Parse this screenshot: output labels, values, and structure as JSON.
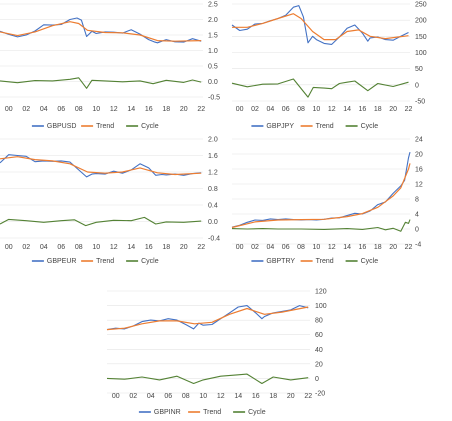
{
  "colors": {
    "series": "#4472C4",
    "trend": "#ED7D31",
    "cycle": "#548235",
    "grid": "#e4e4e4"
  },
  "x_ticks": [
    "00",
    "02",
    "04",
    "06",
    "08",
    "10",
    "12",
    "14",
    "16",
    "18",
    "20",
    "22"
  ],
  "chart_data": [
    {
      "type": "line",
      "x_start": 1999,
      "x_end": 2022.2,
      "ylim": [
        -0.5,
        2.5
      ],
      "yticks": [
        "2.5",
        "2.0",
        "1.5",
        "1.0",
        "0.5",
        "0.0",
        "-0.5"
      ],
      "legend": [
        "GBPUSD",
        "Trend",
        "Cycle"
      ],
      "legend_position": "bottom",
      "series_points": [
        [
          1999,
          1.62
        ],
        [
          2000,
          1.52
        ],
        [
          2001,
          1.44
        ],
        [
          2002,
          1.5
        ],
        [
          2003,
          1.63
        ],
        [
          2004,
          1.83
        ],
        [
          2005,
          1.82
        ],
        [
          2006,
          1.84
        ],
        [
          2007,
          2.0
        ],
        [
          2007.8,
          2.05
        ],
        [
          2008.3,
          1.98
        ],
        [
          2008.9,
          1.45
        ],
        [
          2009.5,
          1.62
        ],
        [
          2010,
          1.55
        ],
        [
          2011,
          1.6
        ],
        [
          2012,
          1.59
        ],
        [
          2013,
          1.56
        ],
        [
          2014,
          1.67
        ],
        [
          2015,
          1.53
        ],
        [
          2016,
          1.35
        ],
        [
          2016.6,
          1.28
        ],
        [
          2017,
          1.25
        ],
        [
          2018,
          1.35
        ],
        [
          2019,
          1.28
        ],
        [
          2020,
          1.27
        ],
        [
          2021,
          1.38
        ],
        [
          2022,
          1.3
        ]
      ],
      "trend_points": [
        [
          1999,
          1.6
        ],
        [
          2001,
          1.48
        ],
        [
          2003,
          1.6
        ],
        [
          2005,
          1.8
        ],
        [
          2007,
          1.93
        ],
        [
          2008,
          1.87
        ],
        [
          2009,
          1.65
        ],
        [
          2011,
          1.58
        ],
        [
          2013,
          1.57
        ],
        [
          2015,
          1.5
        ],
        [
          2017,
          1.32
        ],
        [
          2019,
          1.3
        ],
        [
          2022,
          1.32
        ]
      ],
      "cycle_points": [
        [
          1999,
          0.02
        ],
        [
          2001,
          -0.04
        ],
        [
          2003,
          0.03
        ],
        [
          2005,
          0.02
        ],
        [
          2007,
          0.07
        ],
        [
          2008,
          0.12
        ],
        [
          2008.9,
          -0.22
        ],
        [
          2009.5,
          0.04
        ],
        [
          2011,
          0.02
        ],
        [
          2013,
          -0.01
        ],
        [
          2015,
          0.02
        ],
        [
          2016.5,
          -0.07
        ],
        [
          2018,
          0.04
        ],
        [
          2020,
          -0.03
        ],
        [
          2021,
          0.05
        ],
        [
          2022,
          -0.02
        ]
      ]
    },
    {
      "type": "line",
      "x_start": 1999,
      "x_end": 2022.2,
      "ylim": [
        -50,
        250
      ],
      "yticks": [
        "250",
        "200",
        "150",
        "100",
        "50",
        "0",
        "-50"
      ],
      "legend": [
        "GBPJPY",
        "Trend",
        "Cycle"
      ],
      "legend_position": "bottom",
      "series_points": [
        [
          1999,
          185
        ],
        [
          2000,
          168
        ],
        [
          2001,
          172
        ],
        [
          2002,
          188
        ],
        [
          2003,
          190
        ],
        [
          2004,
          198
        ],
        [
          2005,
          205
        ],
        [
          2006,
          215
        ],
        [
          2007,
          240
        ],
        [
          2007.7,
          245
        ],
        [
          2008.3,
          210
        ],
        [
          2008.9,
          130
        ],
        [
          2009.5,
          150
        ],
        [
          2010,
          140
        ],
        [
          2011,
          128
        ],
        [
          2012,
          125
        ],
        [
          2013,
          148
        ],
        [
          2014,
          175
        ],
        [
          2015,
          185
        ],
        [
          2016,
          160
        ],
        [
          2016.7,
          135
        ],
        [
          2017,
          145
        ],
        [
          2018,
          148
        ],
        [
          2019,
          140
        ],
        [
          2020,
          138
        ],
        [
          2021,
          150
        ],
        [
          2022,
          162
        ]
      ],
      "trend_points": [
        [
          1999,
          178
        ],
        [
          2001,
          178
        ],
        [
          2003,
          190
        ],
        [
          2005,
          205
        ],
        [
          2007,
          220
        ],
        [
          2008,
          205
        ],
        [
          2009.5,
          165
        ],
        [
          2011,
          140
        ],
        [
          2012.5,
          140
        ],
        [
          2014,
          165
        ],
        [
          2015.5,
          170
        ],
        [
          2017,
          150
        ],
        [
          2019,
          143
        ],
        [
          2022,
          152
        ]
      ],
      "cycle_points": [
        [
          1999,
          5
        ],
        [
          2001,
          -6
        ],
        [
          2003,
          2
        ],
        [
          2005,
          3
        ],
        [
          2007,
          18
        ],
        [
          2008.9,
          -38
        ],
        [
          2009.6,
          -8
        ],
        [
          2011,
          -10
        ],
        [
          2012,
          -12
        ],
        [
          2013,
          4
        ],
        [
          2014,
          8
        ],
        [
          2015,
          12
        ],
        [
          2016.7,
          -18
        ],
        [
          2018,
          4
        ],
        [
          2020,
          -5
        ],
        [
          2022,
          8
        ]
      ]
    },
    {
      "type": "line",
      "x_start": 1999,
      "x_end": 2022.2,
      "ylim": [
        -0.4,
        2.0
      ],
      "yticks": [
        "2.0",
        "1.6",
        "1.2",
        "0.8",
        "0.4",
        "0.0",
        "-0.4"
      ],
      "legend": [
        "GBPEUR",
        "Trend",
        "Cycle"
      ],
      "legend_position": "bottom",
      "series_points": [
        [
          1999,
          1.42
        ],
        [
          2000,
          1.62
        ],
        [
          2001,
          1.6
        ],
        [
          2002,
          1.58
        ],
        [
          2003,
          1.45
        ],
        [
          2004,
          1.47
        ],
        [
          2005,
          1.46
        ],
        [
          2006,
          1.47
        ],
        [
          2007,
          1.44
        ],
        [
          2008,
          1.25
        ],
        [
          2008.9,
          1.08
        ],
        [
          2009.5,
          1.15
        ],
        [
          2010,
          1.16
        ],
        [
          2011,
          1.15
        ],
        [
          2012,
          1.22
        ],
        [
          2013,
          1.17
        ],
        [
          2014,
          1.25
        ],
        [
          2015,
          1.4
        ],
        [
          2016,
          1.3
        ],
        [
          2016.8,
          1.12
        ],
        [
          2017.5,
          1.14
        ],
        [
          2018,
          1.13
        ],
        [
          2019,
          1.15
        ],
        [
          2020,
          1.12
        ],
        [
          2021,
          1.16
        ],
        [
          2022,
          1.18
        ]
      ],
      "trend_points": [
        [
          1999,
          1.52
        ],
        [
          2001,
          1.57
        ],
        [
          2003,
          1.5
        ],
        [
          2005,
          1.47
        ],
        [
          2007,
          1.4
        ],
        [
          2009,
          1.2
        ],
        [
          2011,
          1.17
        ],
        [
          2013,
          1.2
        ],
        [
          2015,
          1.3
        ],
        [
          2017,
          1.18
        ],
        [
          2019,
          1.14
        ],
        [
          2022,
          1.17
        ]
      ],
      "cycle_points": [
        [
          1999,
          -0.06
        ],
        [
          2000,
          0.05
        ],
        [
          2002,
          0.02
        ],
        [
          2004,
          -0.02
        ],
        [
          2006,
          0.02
        ],
        [
          2007.5,
          0.04
        ],
        [
          2008.8,
          -0.1
        ],
        [
          2010,
          -0.02
        ],
        [
          2012,
          0.03
        ],
        [
          2014,
          0.02
        ],
        [
          2015.5,
          0.1
        ],
        [
          2016.8,
          -0.06
        ],
        [
          2018,
          -0.01
        ],
        [
          2020,
          -0.02
        ],
        [
          2022,
          0.01
        ]
      ]
    },
    {
      "type": "line",
      "x_start": 1999,
      "x_end": 2022.2,
      "ylim": [
        -4,
        24
      ],
      "yticks": [
        "24",
        "20",
        "16",
        "12",
        "8",
        "4",
        "0",
        "-4"
      ],
      "legend": [
        "GBPTRY",
        "Trend",
        "Cycle"
      ],
      "legend_position": "bottom",
      "series_points": [
        [
          1999,
          0.5
        ],
        [
          2000,
          1.0
        ],
        [
          2001,
          1.8
        ],
        [
          2002,
          2.4
        ],
        [
          2003,
          2.3
        ],
        [
          2004,
          2.7
        ],
        [
          2005,
          2.5
        ],
        [
          2006,
          2.7
        ],
        [
          2007,
          2.5
        ],
        [
          2008,
          2.4
        ],
        [
          2009,
          2.5
        ],
        [
          2010,
          2.4
        ],
        [
          2011,
          2.6
        ],
        [
          2012,
          2.9
        ],
        [
          2013,
          3.0
        ],
        [
          2014,
          3.6
        ],
        [
          2015,
          4.2
        ],
        [
          2016,
          4.0
        ],
        [
          2017,
          4.8
        ],
        [
          2018,
          6.5
        ],
        [
          2019,
          7.2
        ],
        [
          2020,
          9.5
        ],
        [
          2021,
          11.5
        ],
        [
          2021.5,
          13
        ],
        [
          2022,
          19
        ],
        [
          2022.2,
          20.5
        ]
      ],
      "trend_points": [
        [
          1999,
          0.4
        ],
        [
          2002,
          1.9
        ],
        [
          2005,
          2.4
        ],
        [
          2008,
          2.5
        ],
        [
          2011,
          2.6
        ],
        [
          2014,
          3.3
        ],
        [
          2016,
          4.1
        ],
        [
          2018,
          5.8
        ],
        [
          2020,
          8.8
        ],
        [
          2021,
          11.0
        ],
        [
          2022,
          16.0
        ],
        [
          2022.2,
          17.5
        ]
      ],
      "cycle_points": [
        [
          1999,
          0.1
        ],
        [
          2001,
          0.0
        ],
        [
          2003,
          0.1
        ],
        [
          2005,
          0.0
        ],
        [
          2008,
          0.0
        ],
        [
          2011,
          -0.1
        ],
        [
          2014,
          0.1
        ],
        [
          2016,
          -0.1
        ],
        [
          2018,
          0.4
        ],
        [
          2019,
          -0.2
        ],
        [
          2020,
          0.2
        ],
        [
          2021,
          -0.6
        ],
        [
          2021.6,
          1.8
        ],
        [
          2022,
          1.5
        ],
        [
          2022.2,
          2.5
        ]
      ]
    },
    {
      "type": "line",
      "x_start": 1999,
      "x_end": 2022.2,
      "ylim": [
        -20,
        120
      ],
      "yticks": [
        "120",
        "100",
        "80",
        "60",
        "40",
        "20",
        "0",
        "-20"
      ],
      "legend": [
        "GBPINR",
        "Trend",
        "Cycle"
      ],
      "legend_position": "bottom",
      "series_points": [
        [
          1999,
          67
        ],
        [
          2000,
          69
        ],
        [
          2001,
          68
        ],
        [
          2002,
          72
        ],
        [
          2003,
          78
        ],
        [
          2004,
          80
        ],
        [
          2005,
          79
        ],
        [
          2006,
          82
        ],
        [
          2007,
          80
        ],
        [
          2008,
          74
        ],
        [
          2008.9,
          68
        ],
        [
          2009.5,
          76
        ],
        [
          2010,
          73
        ],
        [
          2011,
          74
        ],
        [
          2012,
          82
        ],
        [
          2013,
          90
        ],
        [
          2014,
          98
        ],
        [
          2015,
          100
        ],
        [
          2016,
          90
        ],
        [
          2016.7,
          82
        ],
        [
          2017,
          85
        ],
        [
          2018,
          90
        ],
        [
          2019,
          92
        ],
        [
          2020,
          94
        ],
        [
          2021,
          100
        ],
        [
          2022,
          97
        ]
      ],
      "trend_points": [
        [
          1999,
          67
        ],
        [
          2001,
          69
        ],
        [
          2003,
          75
        ],
        [
          2005,
          79
        ],
        [
          2007,
          79
        ],
        [
          2009,
          75
        ],
        [
          2011,
          77
        ],
        [
          2013,
          88
        ],
        [
          2015,
          96
        ],
        [
          2017,
          88
        ],
        [
          2019,
          91
        ],
        [
          2022,
          98
        ]
      ],
      "cycle_points": [
        [
          1999,
          0
        ],
        [
          2001,
          -1
        ],
        [
          2003,
          2
        ],
        [
          2005,
          -2
        ],
        [
          2007,
          3
        ],
        [
          2008.9,
          -7
        ],
        [
          2010,
          -2
        ],
        [
          2012,
          3
        ],
        [
          2014,
          5
        ],
        [
          2015,
          6
        ],
        [
          2016.7,
          -7
        ],
        [
          2018,
          2
        ],
        [
          2020,
          -2
        ],
        [
          2022,
          1
        ]
      ]
    }
  ]
}
